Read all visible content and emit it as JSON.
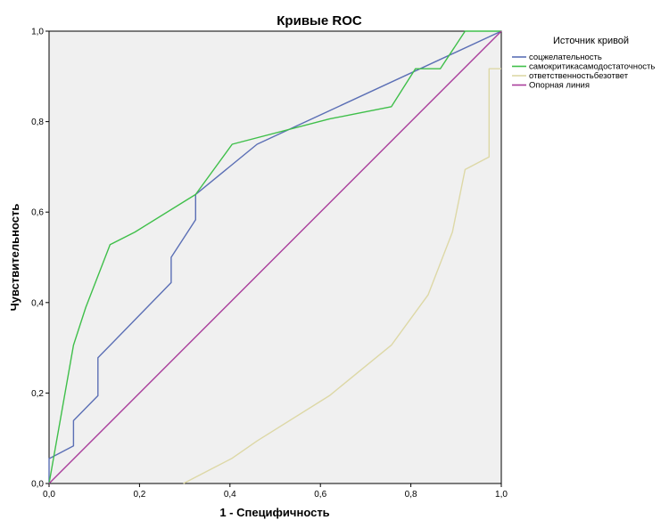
{
  "chart_data": {
    "type": "line",
    "title": "Кривые ROC",
    "xlabel": "1 - Специфичность",
    "ylabel": "Чувствительность",
    "xlim": [
      0,
      1
    ],
    "ylim": [
      0,
      1
    ],
    "x_ticks": [
      "0,0",
      "0,2",
      "0,4",
      "0,6",
      "0,8",
      "1,0"
    ],
    "y_ticks": [
      "0,0",
      "0,2",
      "0,4",
      "0,6",
      "0,8",
      "1,0"
    ],
    "grid": false,
    "background_color": "#f0f0f0",
    "legend_title": "Источник кривой",
    "legend_position": "right",
    "series": [
      {
        "name": "соцжелательность",
        "color": "#5b6fb5",
        "points": [
          [
            0,
            0
          ],
          [
            0,
            0.055
          ],
          [
            0.054,
            0.083
          ],
          [
            0.054,
            0.139
          ],
          [
            0.108,
            0.194
          ],
          [
            0.108,
            0.278
          ],
          [
            0.27,
            0.444
          ],
          [
            0.27,
            0.5
          ],
          [
            0.324,
            0.583
          ],
          [
            0.324,
            0.639
          ],
          [
            0.46,
            0.75
          ],
          [
            1,
            1
          ]
        ]
      },
      {
        "name": "самокритикасамодостаточность",
        "color": "#3fbf4a",
        "points": [
          [
            0,
            0
          ],
          [
            0.054,
            0.306
          ],
          [
            0.081,
            0.389
          ],
          [
            0.135,
            0.528
          ],
          [
            0.19,
            0.556
          ],
          [
            0.324,
            0.639
          ],
          [
            0.405,
            0.75
          ],
          [
            0.62,
            0.806
          ],
          [
            0.757,
            0.833
          ],
          [
            0.81,
            0.917
          ],
          [
            0.865,
            0.917
          ],
          [
            0.92,
            1
          ],
          [
            1,
            1
          ]
        ]
      },
      {
        "name": "ответственностьбезответ",
        "color": "#ddd8a6",
        "points": [
          [
            0.297,
            0
          ],
          [
            0.351,
            0.028
          ],
          [
            0.405,
            0.056
          ],
          [
            0.46,
            0.094
          ],
          [
            0.62,
            0.194
          ],
          [
            0.757,
            0.306
          ],
          [
            0.838,
            0.417
          ],
          [
            0.892,
            0.556
          ],
          [
            0.92,
            0.694
          ],
          [
            0.973,
            0.722
          ],
          [
            0.973,
            0.917
          ],
          [
            1,
            0.917
          ]
        ]
      },
      {
        "name": "Опорная линия",
        "color": "#a93d9b",
        "points": [
          [
            0,
            0
          ],
          [
            1,
            1
          ]
        ]
      }
    ]
  }
}
